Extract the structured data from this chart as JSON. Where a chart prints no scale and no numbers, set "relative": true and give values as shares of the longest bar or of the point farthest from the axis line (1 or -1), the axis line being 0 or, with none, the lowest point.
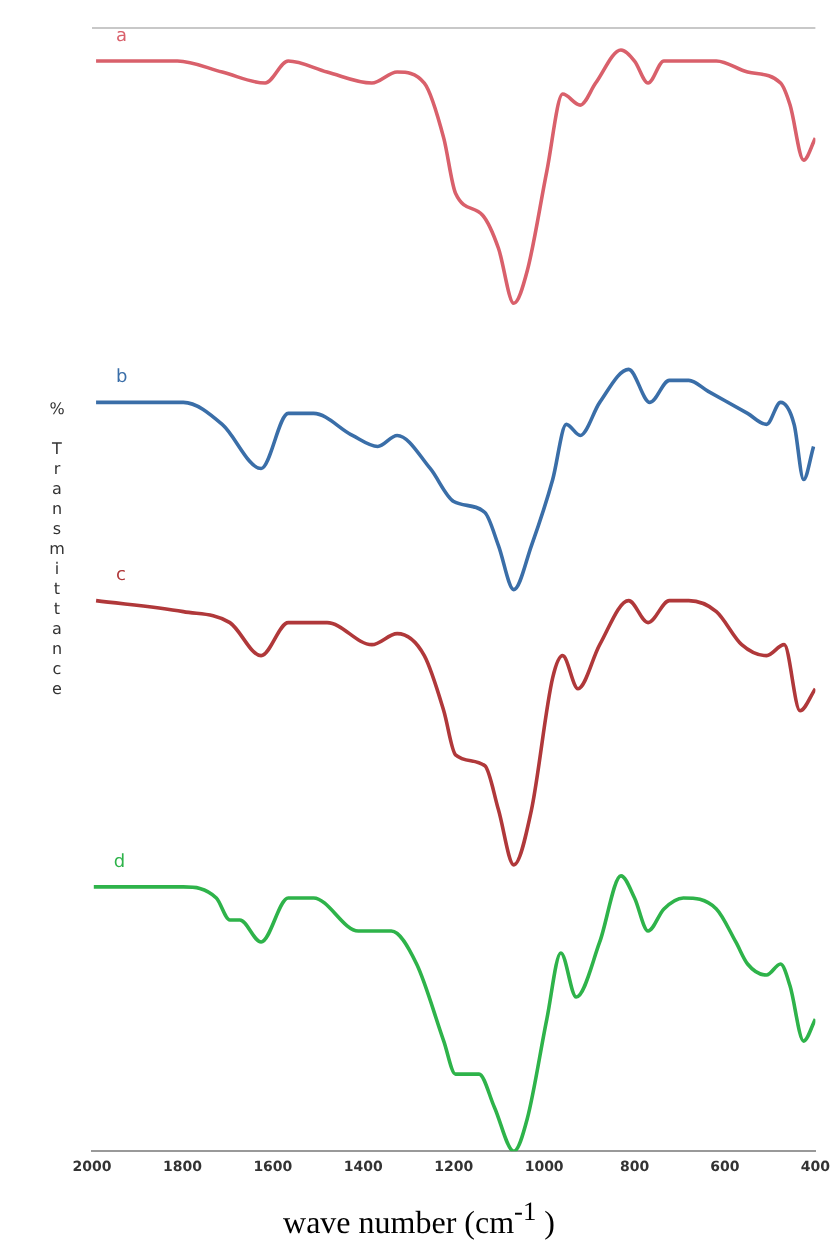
{
  "chart_data": {
    "type": "line",
    "xlabel": "wave number (cm$^{-1}$ )",
    "ylabel": "% Transmittance",
    "relative": true,
    "xlim": [
      2000,
      400
    ],
    "xticks": [
      2000,
      1800,
      1600,
      1400,
      1200,
      1000,
      800,
      600,
      400
    ],
    "grid": false,
    "legend": false,
    "marker": "none",
    "line_style": "solid",
    "series": [
      {
        "name": "a",
        "color": "#d9606b",
        "x": [
          1991,
          1811,
          1712,
          1617,
          1566,
          1480,
          1381,
          1325,
          1265,
          1222,
          1196,
          1136,
          1101,
          1067,
          1037,
          994,
          959,
          920,
          886,
          830,
          800,
          770,
          735,
          680,
          619,
          550,
          477,
          456,
          426,
          400
        ],
        "values": [
          0.99,
          0.99,
          0.98,
          0.97,
          0.99,
          0.98,
          0.97,
          0.98,
          0.97,
          0.92,
          0.87,
          0.85,
          0.82,
          0.77,
          0.8,
          0.89,
          0.96,
          0.95,
          0.97,
          1.0,
          0.99,
          0.97,
          0.99,
          0.99,
          0.99,
          0.98,
          0.97,
          0.95,
          0.9,
          0.92
        ]
      },
      {
        "name": "b",
        "color": "#3a6ea8",
        "x": [
          1991,
          1798,
          1712,
          1626,
          1566,
          1510,
          1424,
          1368,
          1325,
          1252,
          1200,
          1131,
          1101,
          1067,
          1028,
          981,
          951,
          920,
          877,
          813,
          766,
          723,
          680,
          637,
          550,
          508,
          477,
          447,
          426,
          404
        ],
        "values": [
          0.68,
          0.68,
          0.66,
          0.62,
          0.67,
          0.67,
          0.65,
          0.64,
          0.65,
          0.62,
          0.59,
          0.58,
          0.55,
          0.51,
          0.55,
          0.61,
          0.66,
          0.65,
          0.68,
          0.71,
          0.68,
          0.7,
          0.7,
          0.69,
          0.67,
          0.66,
          0.68,
          0.66,
          0.61,
          0.64
        ]
      },
      {
        "name": "c",
        "color": "#b0383a",
        "x": [
          1991,
          1798,
          1695,
          1626,
          1566,
          1480,
          1381,
          1325,
          1265,
          1222,
          1196,
          1131,
          1101,
          1067,
          1028,
          981,
          959,
          925,
          877,
          813,
          770,
          723,
          680,
          619,
          563,
          508,
          469,
          434,
          400
        ],
        "values": [
          0.5,
          0.49,
          0.48,
          0.45,
          0.48,
          0.48,
          0.46,
          0.47,
          0.45,
          0.4,
          0.36,
          0.35,
          0.31,
          0.26,
          0.31,
          0.43,
          0.45,
          0.42,
          0.46,
          0.5,
          0.48,
          0.5,
          0.5,
          0.49,
          0.46,
          0.45,
          0.46,
          0.4,
          0.42
        ]
      },
      {
        "name": "d",
        "color": "#2eb34a",
        "x": [
          1996,
          1798,
          1725,
          1695,
          1673,
          1626,
          1566,
          1510,
          1411,
          1372,
          1338,
          1282,
          1222,
          1196,
          1144,
          1110,
          1067,
          1037,
          994,
          963,
          929,
          877,
          830,
          800,
          770,
          735,
          692,
          619,
          576,
          550,
          508,
          477,
          456,
          426,
          400
        ],
        "values": [
          0.24,
          0.24,
          0.23,
          0.21,
          0.21,
          0.19,
          0.23,
          0.23,
          0.2,
          0.2,
          0.2,
          0.17,
          0.1,
          0.07,
          0.07,
          0.04,
          0.0,
          0.03,
          0.12,
          0.18,
          0.14,
          0.19,
          0.25,
          0.23,
          0.2,
          0.22,
          0.23,
          0.22,
          0.19,
          0.17,
          0.16,
          0.17,
          0.15,
          0.1,
          0.12
        ]
      }
    ]
  }
}
